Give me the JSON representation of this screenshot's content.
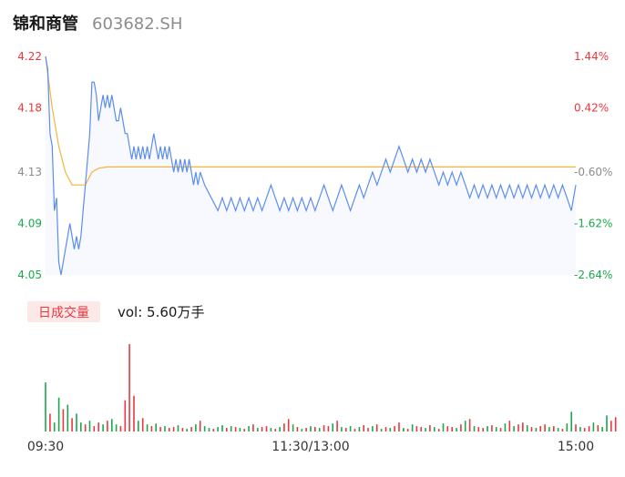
{
  "header": {
    "name": "锦和商管",
    "code": "603682.SH"
  },
  "volume_badge": {
    "label": "日成交量",
    "text": "vol: 5.60万手"
  },
  "colors": {
    "price_line": "#5b8def",
    "avg_line": "#f3b53a",
    "area_fill": "#f7f9fe",
    "up": "#e8383d",
    "down": "#1aa84a",
    "neutral": "#8c8c8c",
    "badge_bg": "#fde8e8",
    "badge_text": "#e8383d"
  },
  "chart_data": [
    {
      "type": "line",
      "title": "",
      "price_axis": {
        "ticks": [
          4.22,
          4.18,
          4.13,
          4.09,
          4.05
        ],
        "tick_labels": [
          "4.22",
          "4.18",
          "4.13",
          "4.09",
          "4.05"
        ],
        "ylim": [
          4.05,
          4.22
        ]
      },
      "pct_axis": {
        "ticks": [
          "1.44%",
          "0.42%",
          "-0.60%",
          "-1.62%",
          "-2.64%"
        ],
        "colors": [
          "up",
          "up",
          "neutral",
          "down",
          "down"
        ]
      },
      "x_ticks": [
        "09:30",
        "11:30/13:00",
        "15:00"
      ],
      "series": [
        {
          "key": "price",
          "x": [
            0,
            1,
            2,
            3,
            4,
            5,
            6,
            7,
            8,
            9,
            10,
            11,
            12,
            13,
            14,
            15,
            16,
            17,
            18,
            19,
            20,
            21,
            22,
            23,
            24,
            25,
            26,
            27,
            28,
            29,
            30,
            31,
            32,
            33,
            34,
            35,
            36,
            37,
            38,
            39,
            40,
            41,
            42,
            43,
            44,
            45,
            46,
            47,
            48,
            49,
            50,
            51,
            52,
            53,
            54,
            55,
            56,
            57,
            58,
            59,
            60,
            61,
            62,
            63,
            64,
            65,
            66,
            67,
            68,
            69,
            70,
            72,
            75,
            78,
            80,
            82,
            84,
            86,
            88,
            90,
            92,
            94,
            96,
            98,
            100,
            102,
            104,
            106,
            108,
            110,
            112,
            114,
            116,
            118,
            120,
            122,
            124,
            126,
            128,
            130,
            132,
            134,
            136,
            138,
            140,
            142,
            144,
            146,
            148,
            150,
            152,
            154,
            156,
            158,
            160,
            162,
            164,
            166,
            168,
            170,
            172,
            174,
            176,
            178,
            180,
            182,
            184,
            186,
            188,
            190,
            192,
            194,
            196,
            198,
            200,
            202,
            204,
            206,
            208,
            210,
            212,
            214,
            216,
            218,
            220,
            222,
            224,
            226,
            228,
            230,
            232,
            234,
            236,
            238,
            240
          ],
          "values": [
            4.22,
            4.21,
            4.16,
            4.15,
            4.1,
            4.11,
            4.06,
            4.05,
            4.06,
            4.07,
            4.08,
            4.09,
            4.08,
            4.07,
            4.08,
            4.07,
            4.08,
            4.1,
            4.12,
            4.14,
            4.16,
            4.2,
            4.2,
            4.19,
            4.17,
            4.18,
            4.19,
            4.18,
            4.19,
            4.18,
            4.19,
            4.18,
            4.17,
            4.17,
            4.18,
            4.17,
            4.16,
            4.16,
            4.15,
            4.14,
            4.15,
            4.14,
            4.15,
            4.14,
            4.15,
            4.14,
            4.15,
            4.14,
            4.15,
            4.16,
            4.15,
            4.14,
            4.15,
            4.14,
            4.15,
            4.14,
            4.15,
            4.14,
            4.13,
            4.14,
            4.13,
            4.14,
            4.13,
            4.14,
            4.13,
            4.14,
            4.13,
            4.12,
            4.13,
            4.12,
            4.13,
            4.12,
            4.11,
            4.1,
            4.11,
            4.1,
            4.11,
            4.1,
            4.11,
            4.1,
            4.11,
            4.1,
            4.11,
            4.1,
            4.11,
            4.12,
            4.11,
            4.1,
            4.11,
            4.1,
            4.11,
            4.1,
            4.11,
            4.1,
            4.11,
            4.1,
            4.11,
            4.12,
            4.11,
            4.1,
            4.11,
            4.12,
            4.11,
            4.1,
            4.11,
            4.12,
            4.11,
            4.12,
            4.13,
            4.12,
            4.13,
            4.14,
            4.13,
            4.14,
            4.15,
            4.14,
            4.13,
            4.14,
            4.13,
            4.14,
            4.13,
            4.14,
            4.13,
            4.12,
            4.13,
            4.12,
            4.13,
            4.12,
            4.13,
            4.12,
            4.11,
            4.12,
            4.11,
            4.12,
            4.11,
            4.12,
            4.11,
            4.12,
            4.11,
            4.12,
            4.11,
            4.12,
            4.11,
            4.12,
            4.11,
            4.12,
            4.11,
            4.12,
            4.11,
            4.12,
            4.11,
            4.12,
            4.11,
            4.1,
            4.12
          ]
        },
        {
          "key": "average",
          "x": [
            0,
            3,
            6,
            9,
            12,
            15,
            18,
            21,
            24,
            28,
            35,
            60,
            100,
            150,
            200,
            240
          ],
          "values": [
            4.22,
            4.18,
            4.15,
            4.13,
            4.12,
            4.12,
            4.12,
            4.13,
            4.133,
            4.134,
            4.134,
            4.134,
            4.134,
            4.134,
            4.134,
            4.134
          ]
        }
      ]
    },
    {
      "type": "bar",
      "title": "",
      "series_name": "日成交量",
      "x_start": 0,
      "x_step": 2,
      "values": [
        55,
        20,
        10,
        38,
        25,
        30,
        15,
        20,
        10,
        8,
        12,
        6,
        10,
        8,
        12,
        14,
        8,
        6,
        35,
        98,
        40,
        12,
        15,
        8,
        6,
        9,
        5,
        6,
        4,
        5,
        7,
        4,
        3,
        5,
        8,
        12,
        6,
        4,
        3,
        5,
        7,
        4,
        6,
        5,
        4,
        3,
        6,
        8,
        4,
        5,
        6,
        4,
        3,
        5,
        9,
        14,
        8,
        5,
        3,
        4,
        6,
        5,
        4,
        7,
        6,
        9,
        12,
        5,
        4,
        6,
        3,
        5,
        7,
        4,
        6,
        8,
        3,
        5,
        4,
        6,
        10,
        4,
        3,
        8,
        6,
        5,
        4,
        7,
        5,
        3,
        9,
        6,
        5,
        4,
        8,
        12,
        14,
        6,
        5,
        4,
        6,
        7,
        5,
        4,
        9,
        12,
        6,
        8,
        10,
        7,
        5,
        4,
        6,
        8,
        5,
        6,
        4,
        3,
        9,
        22,
        8,
        5,
        4,
        6,
        10,
        7,
        5,
        18,
        12,
        16
      ],
      "up": [
        false,
        true,
        false,
        false,
        true,
        false,
        true,
        false,
        false,
        true,
        false,
        true,
        true,
        false,
        true,
        false,
        false,
        true,
        true,
        true,
        true,
        false,
        true,
        false,
        true,
        false,
        true,
        false,
        true,
        true,
        false,
        true,
        false,
        true,
        false,
        true,
        false,
        false,
        true,
        false,
        false,
        true,
        false,
        true,
        false,
        true,
        false,
        true,
        false,
        true,
        true,
        false,
        true,
        false,
        true,
        true,
        false,
        true,
        false,
        true,
        false,
        true,
        false,
        true,
        true,
        false,
        true,
        false,
        true,
        false,
        true,
        false,
        true,
        true,
        false,
        true,
        false,
        true,
        false,
        true,
        true,
        false,
        true,
        false,
        true,
        true,
        false,
        true,
        false,
        true,
        false,
        true,
        true,
        false,
        true,
        false,
        true,
        false,
        true,
        true,
        false,
        true,
        false,
        true,
        false,
        true,
        false,
        true,
        true,
        false,
        true,
        false,
        true,
        true,
        false,
        true,
        false,
        true,
        false,
        false,
        true,
        false,
        true,
        true,
        false,
        true,
        false,
        false,
        true,
        true
      ],
      "ylim": [
        0,
        100
      ]
    }
  ]
}
